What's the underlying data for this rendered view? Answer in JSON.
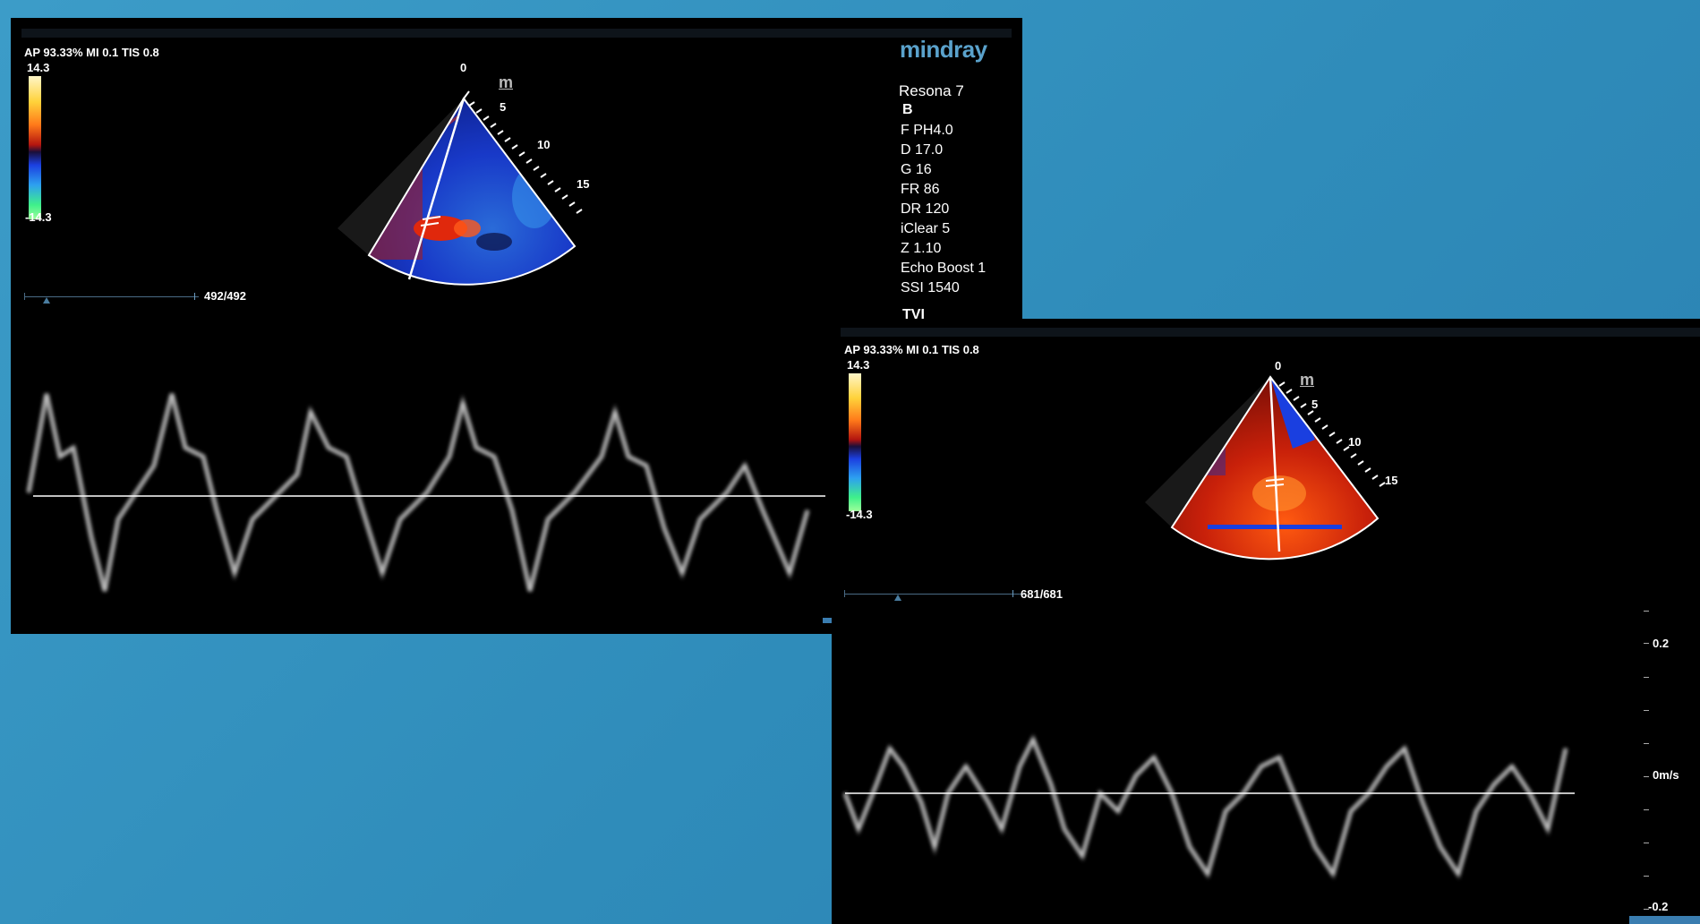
{
  "left_view": {
    "params": "AP 93.33%  MI 0.1 TIS 0.8",
    "color_max": "14.3",
    "color_min": "-14.3",
    "depth_marks": [
      "0",
      "5",
      "10",
      "15"
    ],
    "sector_logo": "m",
    "frame_counter": "492/492",
    "brand": "mindray",
    "device_name": "Resona 7",
    "mode": "B",
    "settings": [
      "F PH4.0",
      "D 17.0",
      "G 16",
      "FR 86",
      "DR 120",
      "iClear 5",
      "Z 1.10",
      "Echo Boost 1",
      "SSI 1540"
    ],
    "trace_mode": "TVI"
  },
  "right_view": {
    "params": "AP 93.33%  MI 0.1 TIS 0.8",
    "color_max": "14.3",
    "color_min": "-14.3",
    "depth_marks": [
      "0",
      "5",
      "10",
      "15"
    ],
    "sector_logo": "m",
    "frame_counter": "681/681",
    "velocity_scale": {
      "top": "0.2",
      "zero": "0m/s",
      "bottom": "-0.2"
    }
  },
  "colors": {
    "background": "#3397c4",
    "brand_blue": "#5aa2cc",
    "doppler_red": "#c8200a",
    "doppler_blue": "#1a3fe0"
  }
}
